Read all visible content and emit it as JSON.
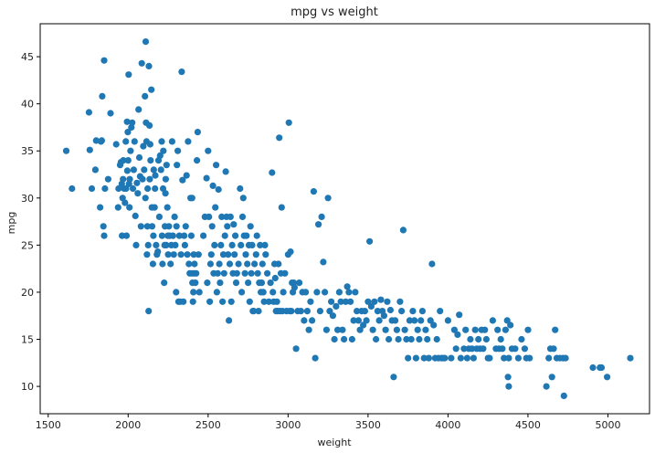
{
  "chart_data": {
    "type": "scatter",
    "title": "mpg vs weight",
    "xlabel": "weight",
    "ylabel": "mpg",
    "xlim": [
      1450,
      5260
    ],
    "ylim": [
      7.1,
      48.5
    ],
    "xticks": [
      1500,
      2000,
      2500,
      3000,
      3500,
      4000,
      4500,
      5000
    ],
    "yticks": [
      10,
      15,
      20,
      25,
      30,
      35,
      40,
      45
    ],
    "grid": false,
    "legend": "none",
    "point_color": "#1f77b4",
    "points": [
      [
        1613,
        35
      ],
      [
        1649,
        31
      ],
      [
        1755,
        39.1
      ],
      [
        1760,
        35.1
      ],
      [
        1773,
        31
      ],
      [
        1795,
        33
      ],
      [
        1800,
        36.1
      ],
      [
        1835,
        36.1
      ],
      [
        1845,
        27
      ],
      [
        1850,
        26
      ],
      [
        1825,
        29
      ],
      [
        1830,
        36
      ],
      [
        1838,
        40.8
      ],
      [
        1850,
        44.6
      ],
      [
        1875,
        32
      ],
      [
        1890,
        39
      ],
      [
        1855,
        31
      ],
      [
        1925,
        35.7
      ],
      [
        1937,
        29
      ],
      [
        1940,
        31
      ],
      [
        1950,
        33.5
      ],
      [
        1955,
        33.8
      ],
      [
        1960,
        31.5
      ],
      [
        1962,
        26
      ],
      [
        1965,
        30
      ],
      [
        1968,
        32
      ],
      [
        1970,
        34
      ],
      [
        1975,
        31
      ],
      [
        1980,
        29.5
      ],
      [
        1985,
        36
      ],
      [
        1987,
        31
      ],
      [
        1990,
        26
      ],
      [
        1993,
        38.1
      ],
      [
        1995,
        32.9
      ],
      [
        1998,
        37
      ],
      [
        2000,
        34
      ],
      [
        2003,
        43.1
      ],
      [
        2005,
        31.5
      ],
      [
        2008,
        29
      ],
      [
        2010,
        32
      ],
      [
        2015,
        35
      ],
      [
        2020,
        37.5
      ],
      [
        2025,
        38
      ],
      [
        2030,
        31
      ],
      [
        2035,
        33
      ],
      [
        2040,
        36
      ],
      [
        2045,
        28.1
      ],
      [
        2050,
        25
      ],
      [
        2055,
        31.6
      ],
      [
        2060,
        30.5
      ],
      [
        2065,
        39.4
      ],
      [
        2070,
        34.3
      ],
      [
        2075,
        32.3
      ],
      [
        2080,
        27
      ],
      [
        2085,
        44.3
      ],
      [
        2090,
        32
      ],
      [
        2095,
        35.5
      ],
      [
        2100,
        33
      ],
      [
        2105,
        40.8
      ],
      [
        2108,
        30
      ],
      [
        2110,
        46.6
      ],
      [
        2112,
        38
      ],
      [
        2115,
        36
      ],
      [
        2118,
        24
      ],
      [
        2120,
        27
      ],
      [
        2122,
        31
      ],
      [
        2125,
        25
      ],
      [
        2128,
        18
      ],
      [
        2130,
        44
      ],
      [
        2133,
        37.7
      ],
      [
        2135,
        32
      ],
      [
        2138,
        35.7
      ],
      [
        2140,
        34
      ],
      [
        2145,
        41.5
      ],
      [
        2148,
        29
      ],
      [
        2150,
        27
      ],
      [
        2155,
        23
      ],
      [
        2158,
        26
      ],
      [
        2160,
        33
      ],
      [
        2165,
        29
      ],
      [
        2168,
        31
      ],
      [
        2170,
        32.4
      ],
      [
        2175,
        25
      ],
      [
        2180,
        24
      ],
      [
        2185,
        24.3
      ],
      [
        2190,
        34
      ],
      [
        2195,
        28
      ],
      [
        2200,
        34.5
      ],
      [
        2205,
        33
      ],
      [
        2210,
        36
      ],
      [
        2212,
        26
      ],
      [
        2215,
        23
      ],
      [
        2218,
        31
      ],
      [
        2220,
        35
      ],
      [
        2225,
        21
      ],
      [
        2228,
        25
      ],
      [
        2230,
        27
      ],
      [
        2233,
        30.5
      ],
      [
        2235,
        32
      ],
      [
        2238,
        25
      ],
      [
        2240,
        33.5
      ],
      [
        2245,
        29
      ],
      [
        2248,
        26
      ],
      [
        2250,
        24
      ],
      [
        2255,
        27
      ],
      [
        2260,
        26
      ],
      [
        2265,
        23
      ],
      [
        2270,
        25
      ],
      [
        2275,
        36
      ],
      [
        2280,
        26
      ],
      [
        2285,
        24
      ],
      [
        2290,
        28
      ],
      [
        2295,
        25
      ],
      [
        2300,
        20
      ],
      [
        2302,
        27
      ],
      [
        2305,
        33.5
      ],
      [
        2310,
        35
      ],
      [
        2315,
        19
      ],
      [
        2320,
        26
      ],
      [
        2325,
        19
      ],
      [
        2330,
        24
      ],
      [
        2335,
        43.4
      ],
      [
        2340,
        31.9
      ],
      [
        2345,
        19
      ],
      [
        2350,
        26
      ],
      [
        2355,
        25
      ],
      [
        2360,
        27
      ],
      [
        2365,
        32.4
      ],
      [
        2370,
        24
      ],
      [
        2375,
        36
      ],
      [
        2380,
        23
      ],
      [
        2385,
        22
      ],
      [
        2390,
        30
      ],
      [
        2395,
        26
      ],
      [
        2398,
        22
      ],
      [
        2400,
        30
      ],
      [
        2402,
        21
      ],
      [
        2405,
        19
      ],
      [
        2408,
        20
      ],
      [
        2410,
        24
      ],
      [
        2412,
        22
      ],
      [
        2415,
        23
      ],
      [
        2420,
        21
      ],
      [
        2425,
        22
      ],
      [
        2430,
        34
      ],
      [
        2435,
        37
      ],
      [
        2440,
        24
      ],
      [
        2445,
        20
      ],
      [
        2470,
        26
      ],
      [
        2480,
        28
      ],
      [
        2490,
        32.1
      ],
      [
        2495,
        21
      ],
      [
        2500,
        35
      ],
      [
        2505,
        28
      ],
      [
        2510,
        19
      ],
      [
        2515,
        23
      ],
      [
        2520,
        24
      ],
      [
        2525,
        27
      ],
      [
        2530,
        31.3
      ],
      [
        2535,
        22
      ],
      [
        2540,
        25
      ],
      [
        2545,
        29
      ],
      [
        2550,
        33.5
      ],
      [
        2555,
        20
      ],
      [
        2560,
        22
      ],
      [
        2565,
        30.9
      ],
      [
        2570,
        23
      ],
      [
        2575,
        21
      ],
      [
        2580,
        25
      ],
      [
        2585,
        28
      ],
      [
        2590,
        19
      ],
      [
        2595,
        24
      ],
      [
        2600,
        22
      ],
      [
        2605,
        26
      ],
      [
        2610,
        32.8
      ],
      [
        2615,
        28
      ],
      [
        2620,
        27
      ],
      [
        2625,
        24
      ],
      [
        2630,
        17
      ],
      [
        2635,
        23
      ],
      [
        2640,
        28
      ],
      [
        2645,
        19
      ],
      [
        2650,
        25
      ],
      [
        2655,
        22
      ],
      [
        2660,
        27.2
      ],
      [
        2665,
        24
      ],
      [
        2670,
        26
      ],
      [
        2675,
        21
      ],
      [
        2680,
        22
      ],
      [
        2690,
        23
      ],
      [
        2700,
        31
      ],
      [
        2705,
        25
      ],
      [
        2710,
        20
      ],
      [
        2715,
        28
      ],
      [
        2720,
        30
      ],
      [
        2725,
        26
      ],
      [
        2730,
        22
      ],
      [
        2735,
        24
      ],
      [
        2740,
        26
      ],
      [
        2745,
        23
      ],
      [
        2750,
        21
      ],
      [
        2755,
        25
      ],
      [
        2760,
        19
      ],
      [
        2765,
        27
      ],
      [
        2770,
        22
      ],
      [
        2775,
        25
      ],
      [
        2780,
        18
      ],
      [
        2785,
        18
      ],
      [
        2790,
        23
      ],
      [
        2800,
        24
      ],
      [
        2805,
        26
      ],
      [
        2810,
        22
      ],
      [
        2815,
        18
      ],
      [
        2820,
        21
      ],
      [
        2825,
        25
      ],
      [
        2830,
        20
      ],
      [
        2835,
        21
      ],
      [
        2840,
        23
      ],
      [
        2845,
        20
      ],
      [
        2850,
        19
      ],
      [
        2855,
        25
      ],
      [
        2860,
        24
      ],
      [
        2870,
        22
      ],
      [
        2880,
        19
      ],
      [
        2890,
        21
      ],
      [
        2900,
        32.7
      ],
      [
        2905,
        20
      ],
      [
        2910,
        19
      ],
      [
        2915,
        23
      ],
      [
        2920,
        21.5
      ],
      [
        2925,
        18
      ],
      [
        2930,
        19
      ],
      [
        2935,
        18
      ],
      [
        2940,
        23
      ],
      [
        2945,
        36.4
      ],
      [
        2950,
        18
      ],
      [
        2955,
        22
      ],
      [
        2960,
        29
      ],
      [
        2965,
        18
      ],
      [
        2970,
        20
      ],
      [
        2980,
        22
      ],
      [
        2990,
        18
      ],
      [
        3000,
        24
      ],
      [
        3005,
        38
      ],
      [
        3010,
        18
      ],
      [
        3015,
        24.3
      ],
      [
        3020,
        18
      ],
      [
        3025,
        21
      ],
      [
        3030,
        20
      ],
      [
        3035,
        21
      ],
      [
        3040,
        20.5
      ],
      [
        3050,
        14
      ],
      [
        3060,
        18
      ],
      [
        3070,
        21
      ],
      [
        3080,
        18
      ],
      [
        3090,
        20
      ],
      [
        3100,
        17
      ],
      [
        3110,
        20
      ],
      [
        3120,
        18
      ],
      [
        3130,
        16
      ],
      [
        3140,
        19
      ],
      [
        3150,
        17
      ],
      [
        3160,
        30.7
      ],
      [
        3170,
        13
      ],
      [
        3180,
        20
      ],
      [
        3190,
        27.2
      ],
      [
        3200,
        18
      ],
      [
        3210,
        28
      ],
      [
        3220,
        23.2
      ],
      [
        3230,
        20
      ],
      [
        3240,
        16
      ],
      [
        3250,
        30
      ],
      [
        3260,
        18
      ],
      [
        3270,
        19
      ],
      [
        3280,
        17.5
      ],
      [
        3290,
        15
      ],
      [
        3300,
        18.5
      ],
      [
        3310,
        16
      ],
      [
        3320,
        20
      ],
      [
        3330,
        19
      ],
      [
        3340,
        16
      ],
      [
        3350,
        15
      ],
      [
        3360,
        19
      ],
      [
        3370,
        20.6
      ],
      [
        3380,
        20
      ],
      [
        3390,
        19
      ],
      [
        3400,
        15
      ],
      [
        3410,
        17
      ],
      [
        3420,
        20
      ],
      [
        3430,
        18
      ],
      [
        3440,
        17
      ],
      [
        3450,
        16
      ],
      [
        3460,
        18
      ],
      [
        3470,
        16.5
      ],
      [
        3480,
        18
      ],
      [
        3490,
        17
      ],
      [
        3500,
        19
      ],
      [
        3510,
        25.4
      ],
      [
        3520,
        18.5
      ],
      [
        3530,
        16
      ],
      [
        3540,
        19
      ],
      [
        3550,
        15
      ],
      [
        3560,
        18
      ],
      [
        3570,
        17
      ],
      [
        3580,
        19.2
      ],
      [
        3590,
        18
      ],
      [
        3600,
        17.5
      ],
      [
        3610,
        16
      ],
      [
        3620,
        19
      ],
      [
        3630,
        15
      ],
      [
        3640,
        18.1
      ],
      [
        3650,
        17
      ],
      [
        3660,
        11
      ],
      [
        3670,
        17
      ],
      [
        3680,
        16
      ],
      [
        3690,
        15
      ],
      [
        3700,
        19
      ],
      [
        3710,
        18
      ],
      [
        3720,
        26.6
      ],
      [
        3730,
        16
      ],
      [
        3740,
        15
      ],
      [
        3750,
        13
      ],
      [
        3760,
        17
      ],
      [
        3770,
        15
      ],
      [
        3780,
        18
      ],
      [
        3790,
        17
      ],
      [
        3800,
        13
      ],
      [
        3810,
        16
      ],
      [
        3820,
        15
      ],
      [
        3830,
        17
      ],
      [
        3840,
        18
      ],
      [
        3850,
        13
      ],
      [
        3860,
        16
      ],
      [
        3870,
        15
      ],
      [
        3880,
        13
      ],
      [
        3890,
        17
      ],
      [
        3900,
        23
      ],
      [
        3910,
        16.5
      ],
      [
        3920,
        13
      ],
      [
        3930,
        15
      ],
      [
        3940,
        13
      ],
      [
        3950,
        18
      ],
      [
        3960,
        13
      ],
      [
        3970,
        13
      ],
      [
        3980,
        13
      ],
      [
        4000,
        17
      ],
      [
        4020,
        13
      ],
      [
        4040,
        16
      ],
      [
        4050,
        14
      ],
      [
        4060,
        15.5
      ],
      [
        4070,
        17.6
      ],
      [
        4080,
        13
      ],
      [
        4100,
        14
      ],
      [
        4110,
        16
      ],
      [
        4120,
        13
      ],
      [
        4130,
        14
      ],
      [
        4140,
        15
      ],
      [
        4150,
        14
      ],
      [
        4160,
        13
      ],
      [
        4170,
        16
      ],
      [
        4180,
        14
      ],
      [
        4190,
        15
      ],
      [
        4200,
        14
      ],
      [
        4210,
        16
      ],
      [
        4220,
        14
      ],
      [
        4230,
        16
      ],
      [
        4240,
        15
      ],
      [
        4250,
        13
      ],
      [
        4260,
        13
      ],
      [
        4280,
        17
      ],
      [
        4300,
        14
      ],
      [
        4310,
        16
      ],
      [
        4320,
        14
      ],
      [
        4330,
        15
      ],
      [
        4340,
        14
      ],
      [
        4350,
        13
      ],
      [
        4360,
        16
      ],
      [
        4370,
        17
      ],
      [
        4380,
        13
      ],
      [
        4375,
        11
      ],
      [
        4380,
        10
      ],
      [
        4390,
        16.5
      ],
      [
        4400,
        14
      ],
      [
        4420,
        14
      ],
      [
        4440,
        13
      ],
      [
        4460,
        15
      ],
      [
        4480,
        14
      ],
      [
        4490,
        13
      ],
      [
        4500,
        16
      ],
      [
        4510,
        13
      ],
      [
        4615,
        10
      ],
      [
        4630,
        13
      ],
      [
        4640,
        14
      ],
      [
        4650,
        11
      ],
      [
        4660,
        14
      ],
      [
        4670,
        16
      ],
      [
        4680,
        13
      ],
      [
        4700,
        13
      ],
      [
        4720,
        13
      ],
      [
        4725,
        9
      ],
      [
        4735,
        13
      ],
      [
        4906,
        12
      ],
      [
        4950,
        12
      ],
      [
        4960,
        12
      ],
      [
        4995,
        11
      ],
      [
        5140,
        13
      ]
    ]
  }
}
